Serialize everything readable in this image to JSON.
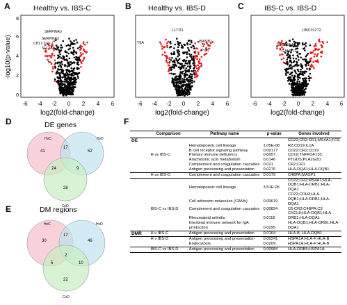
{
  "panels": {
    "A": {
      "label": "A",
      "title": "Healthy vs. IBS-C"
    },
    "B": {
      "label": "B",
      "title": "Healthy vs. IBS-D"
    },
    "C": {
      "label": "C",
      "title": "IBS-C vs. IBS-D"
    },
    "D": {
      "label": "D",
      "title": "DE genes"
    },
    "E": {
      "label": "E",
      "title": "DM regions"
    },
    "F": {
      "label": "F"
    }
  },
  "axes": {
    "ylabel": "-log10(p-value)",
    "xlabel": "log2(fold-change)",
    "xticks": [
      "-6",
      "-4",
      "-2",
      "0",
      "2",
      "4",
      "6"
    ],
    "yticks": [
      "0",
      "2",
      "4",
      "6",
      "8"
    ]
  },
  "gene_labels": {
    "A": [
      "SERPINA3",
      "SERPINA3",
      "CH17-TGF-1",
      "SLC3A4"
    ],
    "B": [
      "L1TD1",
      "T6A",
      "WASB1",
      "PI16"
    ],
    "C": [
      "LINC01272",
      "SLC38A4",
      "GALNT2"
    ]
  },
  "venn_de": {
    "sets": [
      "HvC",
      "HvD",
      "CvD"
    ],
    "regions": {
      "c_only": "41",
      "d_only": "52",
      "cvd_only": "28",
      "c_d": "17",
      "c_cvd": "24",
      "d_cvd": "9"
    }
  },
  "venn_dm": {
    "sets": [
      "HvC",
      "HvD",
      "CvD"
    ],
    "regions": {
      "c_only": "30",
      "d_only": "46",
      "cvd_only": "22",
      "c_d": "17",
      "c_cvd": "5",
      "d_cvd": "10",
      "all": "2"
    }
  },
  "colors": {
    "sig": "#e31a1c",
    "nonsig": "#000000",
    "venn_c": "#f7c6d2",
    "venn_d": "#bfe3ef",
    "venn_cvd": "#c8eec0"
  },
  "table": {
    "headers": [
      "Comparison",
      "Pathway name",
      "p-value",
      "Genes involved"
    ],
    "rows": [
      {
        "grp": "DE",
        "cmp": "",
        "path": "",
        "p": "",
        "genes": "CD22;CR2;CR1;MS4A1;FCE",
        "top": true
      },
      {
        "grp": "",
        "cmp": "",
        "path": "Hematopoietic cell lineage",
        "p": "1.05E-08",
        "genes": "R2;CD19;IL1A"
      },
      {
        "grp": "",
        "cmp": "",
        "path": "B cell receptor signaling pathway",
        "p": "0.00177",
        "genes": "CD22;CR2;CD19"
      },
      {
        "grp": "",
        "cmp": "H vs IBS-C",
        "path": "Primary immune deficiency",
        "p": "0.0057",
        "genes": "CD19;TNFRSF13C"
      },
      {
        "grp": "",
        "cmp": "",
        "path": "Arachidonic acid metabolism",
        "p": "0.0146",
        "genes": "PTGDS;PLA2G2D"
      },
      {
        "grp": "",
        "cmp": "",
        "path": "Complement and coagulation cascades",
        "p": "0.021",
        "genes": "CR2;CR1"
      },
      {
        "grp": "",
        "cmp": "",
        "path": "Antigen processing and presentation",
        "p": "0.0276",
        "genes": "HLA-DQA1;HLA-DQB1"
      },
      {
        "grp": "",
        "cmp": "H vs IBS-D",
        "path": "Complement and coagulation cascades",
        "p": "0.0179",
        "genes": "C4BPA;MASP1",
        "top": true
      },
      {
        "grp": "",
        "cmp": "",
        "path": "",
        "p": "",
        "genes": "CD22;CR2;MS4A1;HLA-",
        "top": true
      },
      {
        "grp": "",
        "cmp": "",
        "path": "Hematopoietic cell lineage",
        "p": "3.51E-05",
        "genes": "DQB1;HLA-DRB1;HLA-DQA1"
      },
      {
        "grp": "",
        "cmp": "",
        "path": "",
        "p": "",
        "genes": "CD22;CDH3;HLA-"
      },
      {
        "grp": "",
        "cmp": "",
        "path": "Cell adhesion molecules (CAMs)",
        "p": "0.00619",
        "genes": "DQB1;HLA-DRB1;HLA-DQA1"
      },
      {
        "grp": "",
        "cmp": "IBS-C vs IBS-D",
        "path": "Complement and coagulation cascades",
        "p": "0.00824",
        "genes": "C6;CR2;C4BPA;C3"
      },
      {
        "grp": "",
        "cmp": "",
        "path": "",
        "p": "",
        "genes": "CXCL8;HLA-DQB1;HLA-"
      },
      {
        "grp": "",
        "cmp": "",
        "path": "Rheumatoid arthritis",
        "p": "0.0115",
        "genes": "DRB1;HLA-DQA1"
      },
      {
        "grp": "",
        "cmp": "",
        "path": "Intestinal immune network for IgA",
        "p": "",
        "genes": "HLA-DQB1;HLA-DRB1;HLA-"
      },
      {
        "grp": "",
        "cmp": "",
        "path": "production",
        "p": "0.0295",
        "genes": "DQA1"
      },
      {
        "grp": "DMR",
        "cmp": "H v IBS-C",
        "path": "Antigen processing and presentation",
        "p": "0.0164",
        "genes": "HLA-B, HLA-DQB1",
        "top": true
      },
      {
        "grp": "",
        "cmp": "H v IBS-D",
        "path": "Antigen processing and presentation",
        "p": "0.00241",
        "genes": "HSPA1A;HLA-F;HLA-B",
        "top": true
      },
      {
        "grp": "",
        "cmp": "",
        "path": "Endocytosis",
        "p": "0.0209",
        "genes": "HSPA1A;HLA-F;HLA-B"
      },
      {
        "grp": "",
        "cmp": "IBS-C vs IBS-D",
        "path": "Antigen processing and presentation",
        "p": "0.00984",
        "genes": "HLA-DRB5;HSPA1A",
        "top": true,
        "end": true
      }
    ]
  }
}
